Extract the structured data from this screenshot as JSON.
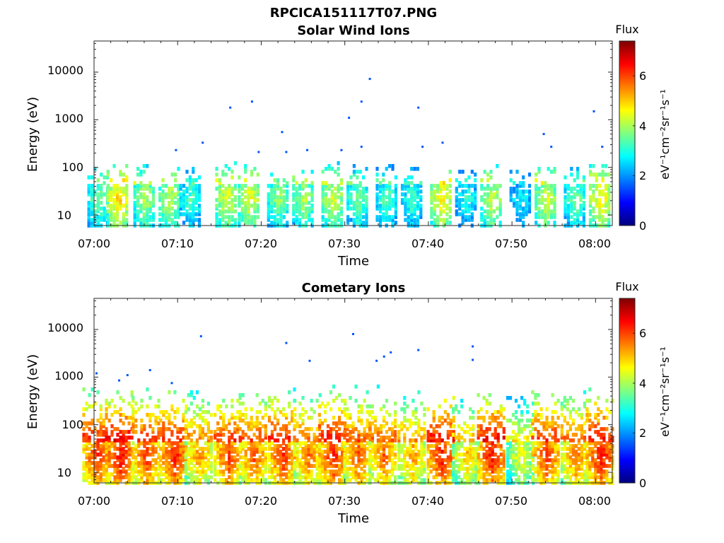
{
  "figure": {
    "title": "RPCICA151117T07.PNG"
  },
  "chart_data": [
    {
      "type": "heatmap",
      "title": "Solar Wind Ions",
      "xlabel": "Time",
      "ylabel": "Energy (eV)",
      "x_ticks": [
        "07:00",
        "07:10",
        "07:20",
        "07:30",
        "07:40",
        "07:50",
        "08:00"
      ],
      "y_ticks": [
        "10",
        "100",
        "1000",
        "10000"
      ],
      "y_scale": "log",
      "xlim": [
        "07:00",
        "08:02"
      ],
      "ylim": [
        6,
        45000
      ],
      "colorbar": {
        "title": "Flux",
        "label": "eV⁻¹cm⁻²sr⁻¹s⁻¹",
        "ticks": [
          "0",
          "2",
          "4",
          "6"
        ],
        "range": [
          0,
          7.4
        ],
        "colormap": "jet"
      },
      "bursts": [
        {
          "t": 0.5,
          "flux": 3.8
        },
        {
          "t": 2.8,
          "flux": 5.0
        },
        {
          "t": 6.0,
          "flux": 4.2
        },
        {
          "t": 9.0,
          "flux": 4.4
        },
        {
          "t": 11.5,
          "flux": 3.5
        },
        {
          "t": 15.8,
          "flux": 4.6
        },
        {
          "t": 18.5,
          "flux": 4.6
        },
        {
          "t": 22.0,
          "flux": 4.0
        },
        {
          "t": 25.0,
          "flux": 4.2
        },
        {
          "t": 28.5,
          "flux": 4.5
        },
        {
          "t": 31.5,
          "flux": 3.8
        },
        {
          "t": 35.0,
          "flux": 3.6
        },
        {
          "t": 38.0,
          "flux": 3.4
        },
        {
          "t": 41.5,
          "flux": 4.8
        },
        {
          "t": 44.5,
          "flux": 3.2
        },
        {
          "t": 47.5,
          "flux": 4.4
        },
        {
          "t": 51.0,
          "flux": 3.0
        },
        {
          "t": 54.0,
          "flux": 4.5
        },
        {
          "t": 57.5,
          "flux": 3.8
        },
        {
          "t": 60.5,
          "flux": 4.8
        }
      ],
      "high_energy_points": [
        {
          "t": 13.0,
          "e": 330
        },
        {
          "t": 16.3,
          "e": 1800
        },
        {
          "t": 18.9,
          "e": 2400
        },
        {
          "t": 22.5,
          "e": 550
        },
        {
          "t": 30.5,
          "e": 1100
        },
        {
          "t": 32.0,
          "e": 2400
        },
        {
          "t": 33.0,
          "e": 7200
        },
        {
          "t": 38.8,
          "e": 1800
        },
        {
          "t": 41.7,
          "e": 330
        },
        {
          "t": 53.8,
          "e": 500
        },
        {
          "t": 59.8,
          "e": 1500
        },
        {
          "t": 9.8,
          "e": 230
        },
        {
          "t": 19.7,
          "e": 210
        },
        {
          "t": 23.0,
          "e": 210
        },
        {
          "t": 25.5,
          "e": 230
        },
        {
          "t": 29.6,
          "e": 230
        },
        {
          "t": 32.0,
          "e": 270
        },
        {
          "t": 39.3,
          "e": 270
        },
        {
          "t": 54.7,
          "e": 270
        },
        {
          "t": 60.8,
          "e": 270
        }
      ]
    },
    {
      "type": "heatmap",
      "title": "Cometary Ions",
      "xlabel": "Time",
      "ylabel": "Energy (eV)",
      "x_ticks": [
        "07:00",
        "07:10",
        "07:20",
        "07:30",
        "07:40",
        "07:50",
        "08:00"
      ],
      "y_ticks": [
        "10",
        "100",
        "1000",
        "10000"
      ],
      "y_scale": "log",
      "xlim": [
        "07:00",
        "08:02"
      ],
      "ylim": [
        6,
        45000
      ],
      "colorbar": {
        "title": "Flux",
        "label": "eV⁻¹cm⁻²sr⁻¹s⁻¹",
        "ticks": [
          "0",
          "2",
          "4",
          "6"
        ],
        "range": [
          0,
          7.4
        ],
        "colormap": "jet"
      },
      "bursts": [
        {
          "t": 0.3,
          "flux": 6.3
        },
        {
          "t": 3.0,
          "flux": 6.6
        },
        {
          "t": 6.2,
          "flux": 6.2
        },
        {
          "t": 9.5,
          "flux": 6.4
        },
        {
          "t": 12.5,
          "flux": 5.6
        },
        {
          "t": 16.0,
          "flux": 6.2
        },
        {
          "t": 19.0,
          "flux": 6.0
        },
        {
          "t": 22.5,
          "flux": 6.3
        },
        {
          "t": 25.5,
          "flux": 5.8
        },
        {
          "t": 28.5,
          "flux": 6.4
        },
        {
          "t": 31.5,
          "flux": 6.0
        },
        {
          "t": 34.5,
          "flux": 5.9
        },
        {
          "t": 38.0,
          "flux": 5.5
        },
        {
          "t": 41.5,
          "flux": 6.5
        },
        {
          "t": 44.5,
          "flux": 5.2
        },
        {
          "t": 47.5,
          "flux": 6.5
        },
        {
          "t": 51.0,
          "flux": 4.8
        },
        {
          "t": 54.0,
          "flux": 6.2
        },
        {
          "t": 57.5,
          "flux": 5.8
        },
        {
          "t": 60.5,
          "flux": 6.5
        }
      ],
      "high_energy_points": [
        {
          "t": 12.8,
          "e": 7200
        },
        {
          "t": 23.0,
          "e": 5200
        },
        {
          "t": 25.8,
          "e": 2200
        },
        {
          "t": 31.0,
          "e": 8000
        },
        {
          "t": 33.8,
          "e": 2200
        },
        {
          "t": 34.7,
          "e": 2700
        },
        {
          "t": 35.5,
          "e": 3300
        },
        {
          "t": 38.8,
          "e": 3700
        },
        {
          "t": 45.3,
          "e": 4400
        },
        {
          "t": 45.3,
          "e": 2300
        },
        {
          "t": 0.3,
          "e": 1200
        },
        {
          "t": 4.0,
          "e": 1100
        },
        {
          "t": 6.7,
          "e": 1400
        },
        {
          "t": 9.3,
          "e": 750
        },
        {
          "t": 3.0,
          "e": 850
        }
      ]
    }
  ]
}
